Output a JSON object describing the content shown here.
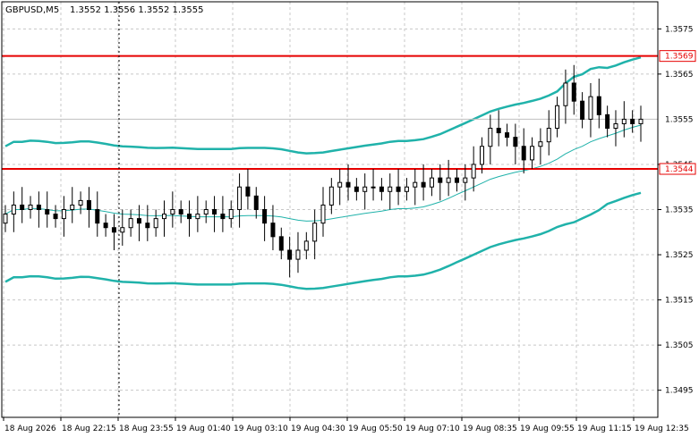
{
  "header": {
    "symbol": "GBPUSD,M5",
    "ohlc": "1.3552 1.3556 1.3552 1.3555"
  },
  "colors": {
    "grid": "#c8c8c8",
    "frame": "#000000",
    "candle": "#000000",
    "bands": "#20b2aa",
    "level": "#e60000",
    "price_line": "#bfbfbf",
    "crosshair": "#000000"
  },
  "chart_data": {
    "type": "candlestick",
    "ylim": [
      1.3489,
      1.3581
    ],
    "y_ticks": [
      "1.3575",
      "1.3565",
      "1.3545",
      "1.3535",
      "1.3525",
      "1.3515",
      "1.3505",
      "1.3495"
    ],
    "x_ticks": [
      "18 Aug 2026",
      "18 Aug 22:15",
      "18 Aug 23:55",
      "19 Aug 01:40",
      "19 Aug 03:10",
      "19 Aug 04:30",
      "19 Aug 05:50",
      "19 Aug 07:10",
      "19 Aug 08:35",
      "19 Aug 09:55",
      "19 Aug 11:15",
      "19 Aug 12:35"
    ],
    "levels": [
      {
        "price": 1.3569,
        "label": "1.3569"
      },
      {
        "price": 1.3544,
        "label": "1.3544"
      }
    ],
    "current_price": {
      "price": 1.3555,
      "label": "1.3555"
    },
    "crosshair_time": "18 Aug 23:55",
    "close_series": [
      1.3534,
      1.3536,
      1.3535,
      1.3536,
      1.3535,
      1.3534,
      1.3533,
      1.3535,
      1.3536,
      1.3537,
      1.3535,
      1.3532,
      1.3531,
      1.353,
      1.3531,
      1.3533,
      1.3532,
      1.3531,
      1.3533,
      1.3534,
      1.3535,
      1.3534,
      1.3533,
      1.3534,
      1.3535,
      1.3534,
      1.3533,
      1.3535,
      1.354,
      1.3538,
      1.3535,
      1.3532,
      1.3529,
      1.3526,
      1.3524,
      1.3526,
      1.3528,
      1.3532,
      1.3536,
      1.354,
      1.3541,
      1.354,
      1.3539,
      1.354,
      1.354,
      1.3539,
      1.354,
      1.3539,
      1.354,
      1.3541,
      1.354,
      1.3542,
      1.3541,
      1.3542,
      1.3541,
      1.3542,
      1.3545,
      1.3549,
      1.3553,
      1.3552,
      1.3551,
      1.3549,
      1.3546,
      1.3549,
      1.355,
      1.3553,
      1.3558,
      1.3563,
      1.3559,
      1.3555,
      1.356,
      1.3556,
      1.3553,
      1.3554,
      1.3555,
      1.3554,
      1.3555
    ]
  }
}
